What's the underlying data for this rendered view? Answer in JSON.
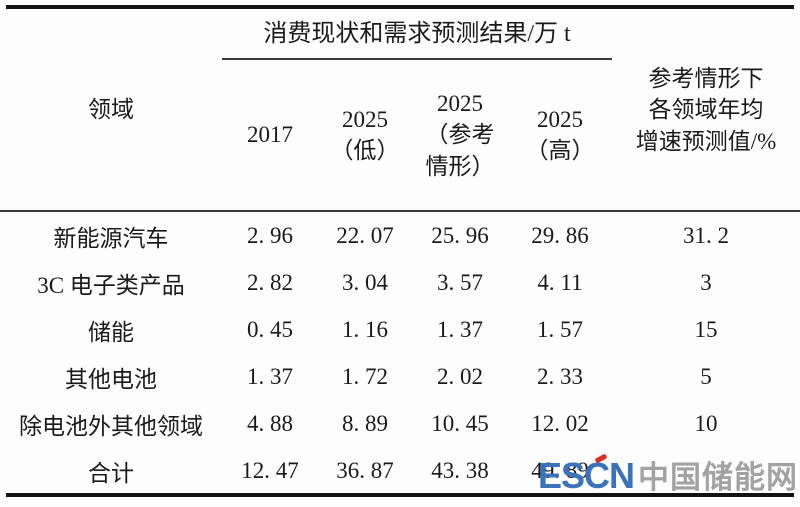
{
  "table": {
    "field_header": "领域",
    "span_header": "消费现状和需求预测结果/万 t",
    "sub_headers": [
      "2017",
      "2025\n（低）",
      "2025\n（参考\n情形）",
      "2025\n（高）"
    ],
    "right_header": "参考情形下\n各领域年均\n增速预测值/%",
    "rows": [
      {
        "label": "新能源汽车",
        "values": [
          "2. 96",
          "22. 07",
          "25. 96",
          "29. 86",
          "31. 2"
        ]
      },
      {
        "label": "3C 电子类产品",
        "values": [
          "2. 82",
          "3. 04",
          "3. 57",
          "4. 11",
          "3"
        ]
      },
      {
        "label": "储能",
        "values": [
          "0. 45",
          "1. 16",
          "1. 37",
          "1. 57",
          "15"
        ]
      },
      {
        "label": "其他电池",
        "values": [
          "1. 37",
          "1. 72",
          "2. 02",
          "2. 33",
          "5"
        ]
      },
      {
        "label": "除电池外其他领域",
        "values": [
          "4. 88",
          "8. 89",
          "10. 45",
          "12. 02",
          "10"
        ]
      },
      {
        "label": "合计",
        "values": [
          "12. 47",
          "36. 87",
          "43. 38",
          "49. 89",
          ""
        ]
      }
    ]
  },
  "watermark": {
    "logo_text": "ESCN",
    "site_name": "中国储能网",
    "logo_color": "#3a73ba",
    "site_color": "#a2a2a2",
    "accent_color": "#d93025"
  }
}
